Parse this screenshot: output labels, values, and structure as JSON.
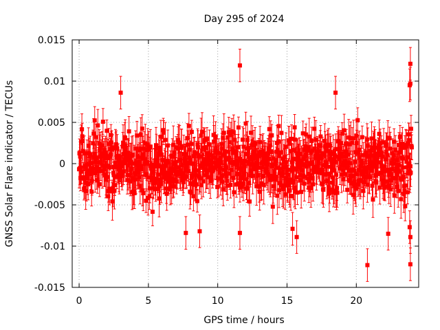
{
  "chart_data": {
    "type": "scatter",
    "title": "Day 295 of 2024",
    "xlabel": "GPS time / hours",
    "ylabel": "GNSS Solar Flare indicator / TECUs",
    "xlim": [
      -0.5,
      24.5
    ],
    "ylim": [
      -0.015,
      0.015
    ],
    "xticks": [
      0,
      5,
      10,
      15,
      20
    ],
    "xtick_labels": [
      "0",
      "5",
      "10",
      "15",
      "20"
    ],
    "yticks": [
      -0.015,
      -0.01,
      -0.005,
      0,
      0.005,
      0.01,
      0.015
    ],
    "ytick_labels": [
      "-0.015",
      "-0.01",
      "-0.005",
      "0",
      "0.005",
      "0.01",
      "0.015"
    ],
    "grid": true,
    "legend": "none",
    "series_color": "#ff0000",
    "error_bars": true,
    "typical_error": 0.0018,
    "bulk_spread": 0.0035,
    "sample_interval_hours": 0.025,
    "x_range": [
      0,
      24
    ],
    "notable_points": [
      {
        "x": 3.0,
        "y": 0.0086
      },
      {
        "x": 11.6,
        "y": 0.0119
      },
      {
        "x": 11.6,
        "y": -0.0084
      },
      {
        "x": 7.7,
        "y": -0.0084
      },
      {
        "x": 8.7,
        "y": -0.0082
      },
      {
        "x": 15.4,
        "y": -0.0079
      },
      {
        "x": 15.7,
        "y": -0.0089
      },
      {
        "x": 18.5,
        "y": 0.0086
      },
      {
        "x": 20.8,
        "y": -0.0123
      },
      {
        "x": 22.3,
        "y": -0.0085
      },
      {
        "x": 23.9,
        "y": 0.0121
      },
      {
        "x": 23.9,
        "y": 0.0097
      },
      {
        "x": 23.85,
        "y": 0.0095
      },
      {
        "x": 23.9,
        "y": -0.0122
      },
      {
        "x": 23.9,
        "y": -0.0089
      },
      {
        "x": 23.85,
        "y": -0.0077
      }
    ]
  }
}
